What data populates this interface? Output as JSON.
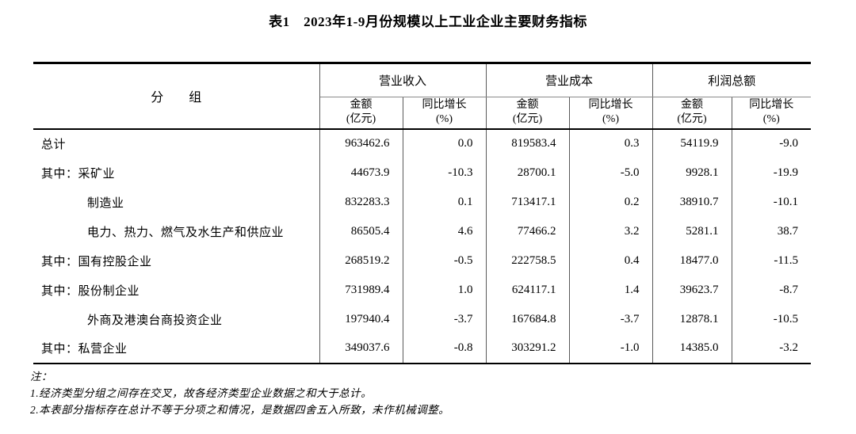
{
  "title": "表1　2023年1-9月份规模以上工业企业主要财务指标",
  "table": {
    "corner_header": "分　　组",
    "column_groups": [
      "营业收入",
      "营业成本",
      "利润总额"
    ],
    "sub_header": {
      "amount": "金额",
      "amount_unit": "(亿元)",
      "growth": "同比增长",
      "growth_unit": "(%)"
    },
    "rows": [
      {
        "label": "总计",
        "cells": [
          "963462.6",
          "0.0",
          "819583.4",
          "0.3",
          "54119.9",
          "-9.0"
        ]
      },
      {
        "label": "其中：采矿业",
        "cells": [
          "44673.9",
          "-10.3",
          "28700.1",
          "-5.0",
          "9928.1",
          "-19.9"
        ]
      },
      {
        "label": "制造业",
        "cells": [
          "832283.3",
          "0.1",
          "713417.1",
          "0.2",
          "38910.7",
          "-10.1"
        ]
      },
      {
        "label": "电力、热力、燃气及水生产和供应业",
        "cells": [
          "86505.4",
          "4.6",
          "77466.2",
          "3.2",
          "5281.1",
          "38.7"
        ]
      },
      {
        "label": "其中：国有控股企业",
        "cells": [
          "268519.2",
          "-0.5",
          "222758.5",
          "0.4",
          "18477.0",
          "-11.5"
        ]
      },
      {
        "label": "其中：股份制企业",
        "cells": [
          "731989.4",
          "1.0",
          "624117.1",
          "1.4",
          "39623.7",
          "-8.7"
        ]
      },
      {
        "label": "外商及港澳台商投资企业",
        "cells": [
          "197940.4",
          "-3.7",
          "167684.8",
          "-3.7",
          "12878.1",
          "-10.5"
        ]
      },
      {
        "label": "其中：私营企业",
        "cells": [
          "349037.6",
          "-0.8",
          "303291.2",
          "-1.0",
          "14385.0",
          "-3.2"
        ]
      }
    ]
  },
  "notes": {
    "heading": "注：",
    "items": [
      "1.经济类型分组之间存在交叉，故各经济类型企业数据之和大于总计。",
      "2.本表部分指标存在总计不等于分项之和情况，是数据四舍五入所致，未作机械调整。"
    ]
  },
  "colors": {
    "background": "#ffffff",
    "text": "#000000",
    "border_heavy": "#000000",
    "border_light": "#595959"
  }
}
